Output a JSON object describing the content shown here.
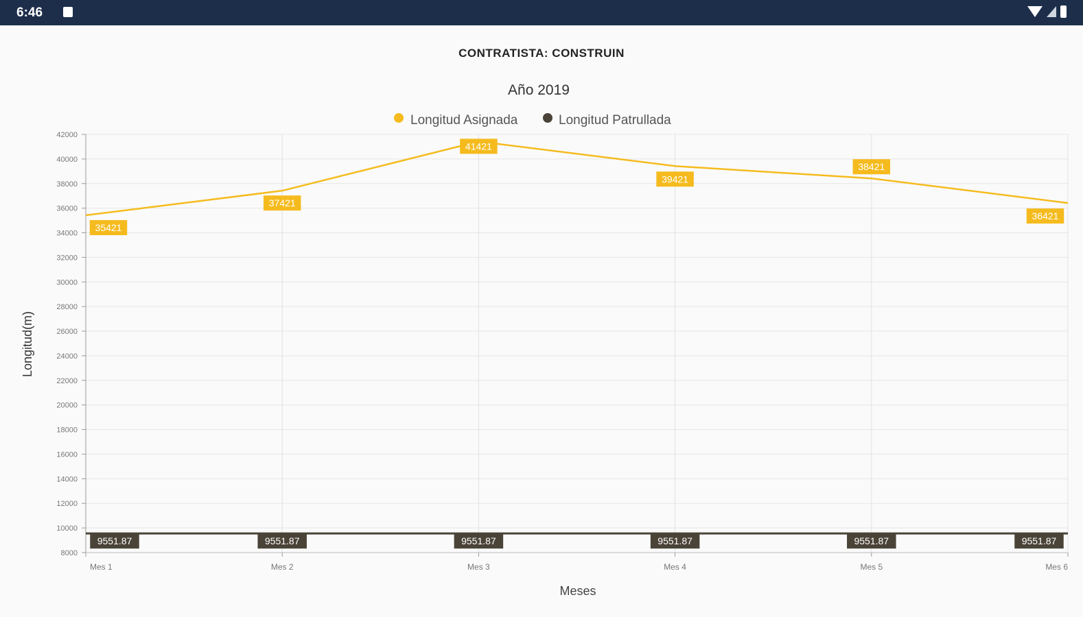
{
  "status_bar": {
    "time": "6:46",
    "icons": [
      "notification-icon",
      "wifi-icon",
      "signal-icon",
      "battery-icon"
    ]
  },
  "header": {
    "title": "CONTRATISTA: CONSTRUIN"
  },
  "chart_data": {
    "type": "line",
    "title": "Año 2019",
    "xlabel": "Meses",
    "ylabel": "Longitud(m)",
    "categories": [
      "Mes 1",
      "Mes 2",
      "Mes 3",
      "Mes 4",
      "Mes 5",
      "Mes 6"
    ],
    "ylim": [
      8000,
      42000
    ],
    "yticks": [
      8000,
      10000,
      12000,
      14000,
      16000,
      18000,
      20000,
      22000,
      24000,
      26000,
      28000,
      30000,
      32000,
      34000,
      36000,
      38000,
      40000,
      42000
    ],
    "grid": true,
    "legend_position": "top-center",
    "series": [
      {
        "name": "Longitud Asignada",
        "color": "#f5bb1e",
        "values": [
          35421,
          37421,
          41421,
          39421,
          38421,
          36421
        ]
      },
      {
        "name": "Longitud Patrullada",
        "color": "#4a4438",
        "values": [
          9551.87,
          9551.87,
          9551.87,
          9551.87,
          9551.87,
          9551.87
        ]
      }
    ]
  }
}
